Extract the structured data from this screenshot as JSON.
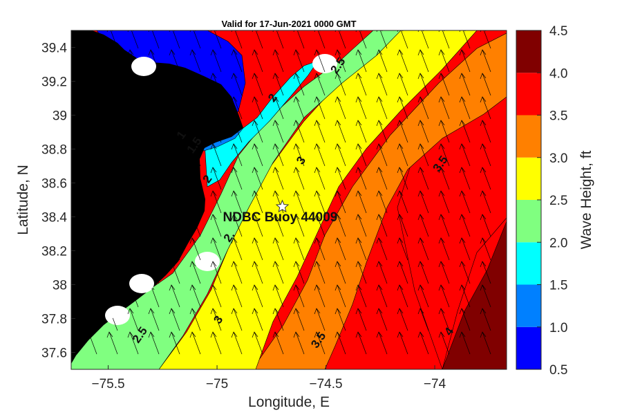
{
  "chart_data": {
    "type": "heatmap",
    "title": "Valid for 17-Jun-2021 0000 GMT",
    "xlabel": "Longitude, E",
    "ylabel": "Latitude, N",
    "xlim": [
      -75.67,
      -73.67
    ],
    "ylim": [
      37.5,
      39.5
    ],
    "x_ticks": [
      -75.5,
      -75,
      -74.5,
      -74
    ],
    "x_tick_labels": [
      "−75.5",
      "−75",
      "−74.5",
      "−74"
    ],
    "y_ticks": [
      37.6,
      37.8,
      38,
      38.2,
      38.4,
      38.6,
      38.8,
      39,
      39.2,
      39.4
    ],
    "y_tick_labels": [
      "37.6",
      "37.8",
      "38",
      "38.2",
      "38.4",
      "38.6",
      "38.8",
      "39",
      "39.2",
      "39.4"
    ],
    "colorbar": {
      "label": "Wave Height, ft",
      "levels": [
        0.5,
        1.0,
        1.5,
        2.0,
        2.5,
        3.0,
        3.5,
        4.0,
        4.5
      ],
      "tick_labels": [
        "0.5",
        "1.0",
        "1.5",
        "2.0",
        "2.5",
        "3.0",
        "3.5",
        "4.0",
        "4.5"
      ],
      "colors": [
        "#0000ff",
        "#0080ff",
        "#00ffff",
        "#80ff80",
        "#ffff00",
        "#ff8000",
        "#ff0000",
        "#800000"
      ]
    },
    "contour_labels": [
      {
        "text": "1",
        "lon": -75.15,
        "lat": 38.87
      },
      {
        "text": "1.5",
        "lon": -75.09,
        "lat": 38.81
      },
      {
        "text": "2",
        "lon": -74.73,
        "lat": 39.09
      },
      {
        "text": "2.5",
        "lon": -74.43,
        "lat": 39.28
      },
      {
        "text": "2",
        "lon": -75.03,
        "lat": 38.61
      },
      {
        "text": "3",
        "lon": -74.6,
        "lat": 38.72
      },
      {
        "text": "3.5",
        "lon": -73.96,
        "lat": 38.7
      },
      {
        "text": "2.",
        "lon": -74.93,
        "lat": 38.27
      },
      {
        "text": "2.5",
        "lon": -75.34,
        "lat": 37.69
      },
      {
        "text": "3",
        "lon": -74.98,
        "lat": 37.78
      },
      {
        "text": "3.5",
        "lon": -74.52,
        "lat": 37.66
      },
      {
        "text": "4",
        "lon": -73.92,
        "lat": 37.71
      }
    ],
    "buoy": {
      "label": "NDBC Buoy 44009",
      "lon": -74.7,
      "lat": 38.46
    },
    "wave_direction": "from south-southeast (arrows point north-northwest)",
    "land_color": "#000000"
  }
}
